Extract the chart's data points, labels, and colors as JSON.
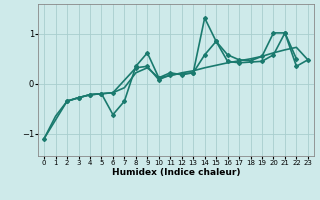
{
  "xlabel": "Humidex (Indice chaleur)",
  "bg_color": "#ceeaea",
  "grid_color": "#a8cece",
  "line_color": "#1a7a6e",
  "xlim": [
    -0.5,
    23.5
  ],
  "ylim": [
    -1.45,
    1.6
  ],
  "yticks": [
    -1,
    0,
    1
  ],
  "xticks": [
    0,
    1,
    2,
    3,
    4,
    5,
    6,
    7,
    8,
    9,
    10,
    11,
    12,
    13,
    14,
    15,
    16,
    17,
    18,
    19,
    20,
    21,
    22,
    23
  ],
  "series": [
    {
      "x": [
        0,
        1,
        2,
        3,
        4,
        5,
        6,
        7,
        8,
        9,
        10,
        11,
        12,
        13,
        14,
        15,
        16,
        17,
        18,
        19,
        20,
        21,
        22,
        23
      ],
      "y": [
        -1.1,
        -0.65,
        -0.35,
        -0.28,
        -0.22,
        -0.2,
        -0.18,
        -0.08,
        0.22,
        0.32,
        0.12,
        0.16,
        0.22,
        0.26,
        0.32,
        0.37,
        0.42,
        0.46,
        0.5,
        0.55,
        0.62,
        0.68,
        0.73,
        0.48
      ],
      "marker": false,
      "lw": 1.2
    },
    {
      "x": [
        0,
        2,
        3,
        4,
        5,
        6,
        7,
        8,
        9,
        10,
        11,
        12,
        13,
        14,
        15,
        16,
        17,
        18,
        19,
        20,
        21,
        22
      ],
      "y": [
        -1.1,
        -0.35,
        -0.28,
        -0.22,
        -0.2,
        -0.62,
        -0.35,
        0.35,
        0.62,
        0.12,
        0.22,
        0.18,
        0.22,
        1.32,
        0.85,
        0.58,
        0.48,
        0.46,
        0.55,
        1.02,
        1.02,
        0.5
      ],
      "marker": true,
      "lw": 1.2
    },
    {
      "x": [
        2,
        3,
        4,
        5,
        6,
        8,
        9,
        10,
        11,
        12,
        13,
        14,
        15,
        16,
        17,
        19,
        20,
        21,
        22,
        23
      ],
      "y": [
        -0.35,
        -0.28,
        -0.22,
        -0.2,
        -0.18,
        0.32,
        0.35,
        0.08,
        0.18,
        0.2,
        0.22,
        0.58,
        0.85,
        0.45,
        0.42,
        0.45,
        0.58,
        1.02,
        0.35,
        0.48
      ],
      "marker": true,
      "lw": 1.2
    }
  ]
}
